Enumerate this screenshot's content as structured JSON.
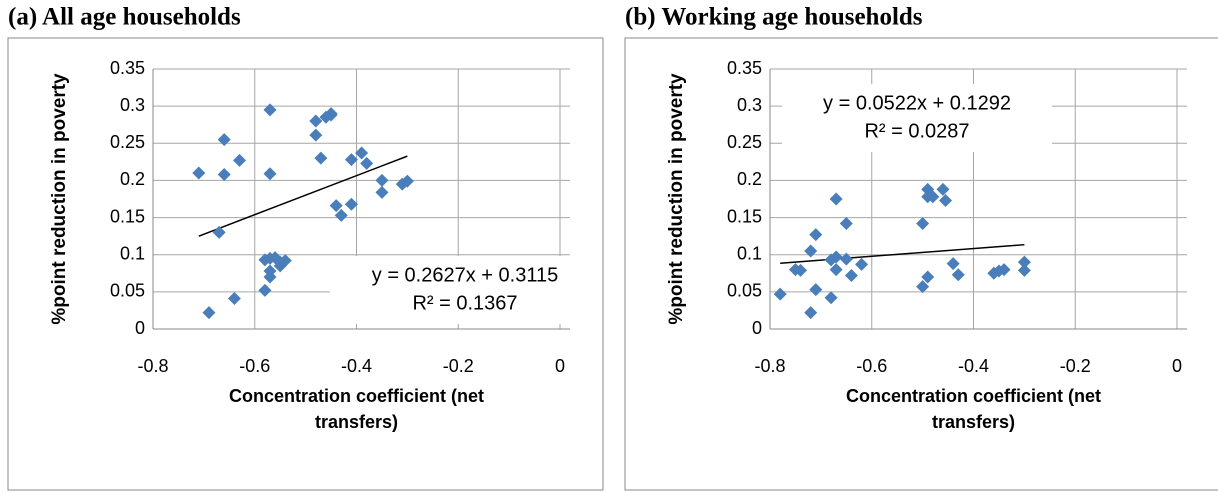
{
  "chart_data": [
    {
      "type": "scatter",
      "title": "(a) All age households",
      "x_label": "Concentration coefficient (net transfers)",
      "y_label": "%point reduction in poverty",
      "xlim": [
        -0.8,
        0
      ],
      "ylim": [
        0,
        0.35
      ],
      "xticks": [
        -0.8,
        -0.6,
        -0.4,
        -0.2,
        0
      ],
      "yticks": [
        0,
        0.05,
        0.1,
        0.15,
        0.2,
        0.25,
        0.3,
        0.35
      ],
      "grid": true,
      "color": "#4a7ebb",
      "x": [
        -0.71,
        -0.66,
        -0.66,
        -0.63,
        -0.67,
        -0.57,
        -0.57,
        -0.69,
        -0.64,
        -0.58,
        -0.58,
        -0.57,
        -0.56,
        -0.57,
        -0.57,
        -0.55,
        -0.54,
        -0.55,
        -0.48,
        -0.48,
        -0.47,
        -0.46,
        -0.45,
        -0.45,
        -0.44,
        -0.43,
        -0.41,
        -0.41,
        -0.39,
        -0.38,
        -0.35,
        -0.35,
        -0.31,
        -0.3
      ],
      "values": [
        0.21,
        0.255,
        0.208,
        0.227,
        0.13,
        0.295,
        0.209,
        0.022,
        0.041,
        0.052,
        0.093,
        0.095,
        0.096,
        0.078,
        0.07,
        0.085,
        0.092,
        0.09,
        0.28,
        0.261,
        0.23,
        0.285,
        0.29,
        0.288,
        0.166,
        0.153,
        0.168,
        0.228,
        0.237,
        0.223,
        0.2,
        0.184,
        0.195,
        0.199
      ],
      "trendline": {
        "x": [
          -0.71,
          -0.3
        ],
        "values": [
          0.125,
          0.2327
        ]
      },
      "annotations": [
        "y = 0.2627x + 0.3115",
        "R² = 0.1367"
      ]
    },
    {
      "type": "scatter",
      "title": "(b) Working age households",
      "x_label": "Concentration coefficient (net transfers)",
      "y_label": "%point reduction in poverty",
      "xlim": [
        -0.8,
        0
      ],
      "ylim": [
        0,
        0.35
      ],
      "xticks": [
        -0.8,
        -0.6,
        -0.4,
        -0.2,
        0
      ],
      "yticks": [
        0,
        0.05,
        0.1,
        0.15,
        0.2,
        0.25,
        0.3,
        0.35
      ],
      "grid": true,
      "color": "#4a7ebb",
      "x": [
        -0.78,
        -0.75,
        -0.74,
        -0.72,
        -0.71,
        -0.71,
        -0.72,
        -0.68,
        -0.67,
        -0.67,
        -0.67,
        -0.68,
        -0.65,
        -0.65,
        -0.64,
        -0.62,
        -0.5,
        -0.49,
        -0.49,
        -0.48,
        -0.46,
        -0.455,
        -0.5,
        -0.49,
        -0.44,
        -0.43,
        -0.36,
        -0.35,
        -0.34,
        -0.3,
        -0.3
      ],
      "values": [
        0.047,
        0.08,
        0.079,
        0.105,
        0.127,
        0.053,
        0.022,
        0.093,
        0.097,
        0.175,
        0.08,
        0.042,
        0.142,
        0.094,
        0.072,
        0.087,
        0.142,
        0.188,
        0.178,
        0.178,
        0.188,
        0.173,
        0.057,
        0.07,
        0.088,
        0.073,
        0.075,
        0.078,
        0.08,
        0.09,
        0.079
      ],
      "trendline": {
        "x": [
          -0.78,
          -0.3
        ],
        "values": [
          0.0885,
          0.1135
        ]
      },
      "annotations": [
        "y = 0.0522x + 0.1292",
        "R² = 0.0287"
      ]
    }
  ]
}
